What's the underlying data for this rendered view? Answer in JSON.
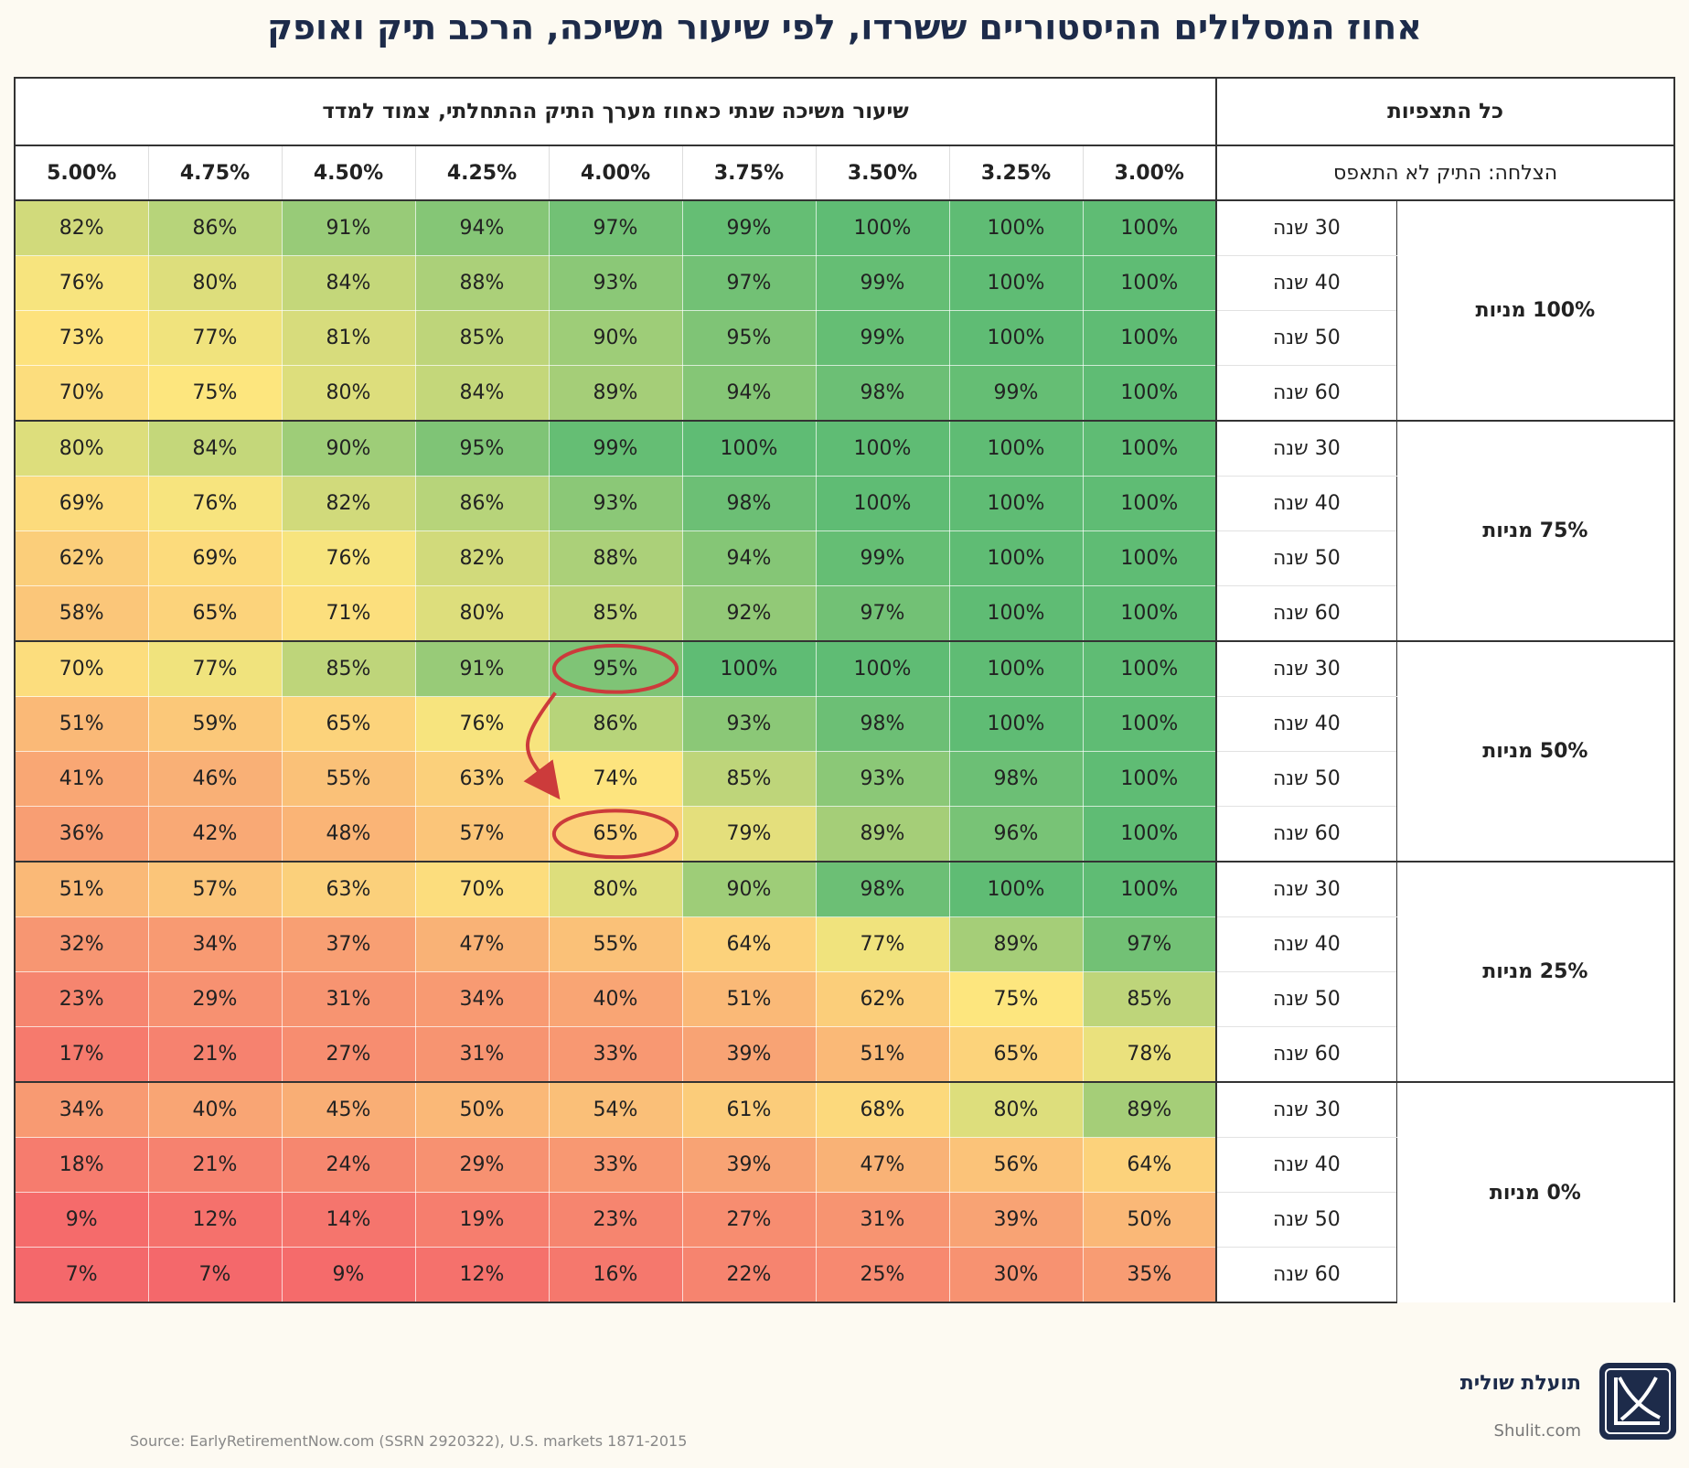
{
  "title": "אחוז המסלולים ההיסטוריים ששרדו, לפי שיעור משיכה, הרכב תיק ואופק",
  "header": {
    "all_expectations": "כל התצפיות",
    "withdrawal_caption": "שיעור משיכה שנתי כאחוז מערך התיק ההתחלתי, צמוד למדד",
    "success_label": "הצלחה: התיק לא התאפס"
  },
  "rates": [
    "5.00%",
    "4.75%",
    "4.50%",
    "4.25%",
    "4.00%",
    "3.75%",
    "3.50%",
    "3.25%",
    "3.00%"
  ],
  "chart_data": {
    "type": "heatmap",
    "title": "אחוז המסלולים ההיסטוריים ששרדו, לפי שיעור משיכה, הרכב תיק ואופק",
    "x_label": "שיעור משיכה שנתי כאחוז מערך התיק ההתחלתי, צמוד למדד",
    "x": [
      "5.00%",
      "4.75%",
      "4.50%",
      "4.25%",
      "4.00%",
      "3.75%",
      "3.50%",
      "3.25%",
      "3.00%"
    ],
    "groups": [
      {
        "name": "100% מניות",
        "rows": [
          {
            "horizon": "30 שנה",
            "values": [
              82,
              86,
              91,
              94,
              97,
              99,
              100,
              100,
              100
            ]
          },
          {
            "horizon": "40 שנה",
            "values": [
              76,
              80,
              84,
              88,
              93,
              97,
              99,
              100,
              100
            ]
          },
          {
            "horizon": "50 שנה",
            "values": [
              73,
              77,
              81,
              85,
              90,
              95,
              99,
              100,
              100
            ]
          },
          {
            "horizon": "60 שנה",
            "values": [
              70,
              75,
              80,
              84,
              89,
              94,
              98,
              99,
              100
            ]
          }
        ]
      },
      {
        "name": "75% מניות",
        "rows": [
          {
            "horizon": "30 שנה",
            "values": [
              80,
              84,
              90,
              95,
              99,
              100,
              100,
              100,
              100
            ]
          },
          {
            "horizon": "40 שנה",
            "values": [
              69,
              76,
              82,
              86,
              93,
              98,
              100,
              100,
              100
            ]
          },
          {
            "horizon": "50 שנה",
            "values": [
              62,
              69,
              76,
              82,
              88,
              94,
              99,
              100,
              100
            ]
          },
          {
            "horizon": "60 שנה",
            "values": [
              58,
              65,
              71,
              80,
              85,
              92,
              97,
              100,
              100
            ]
          }
        ]
      },
      {
        "name": "50% מניות",
        "rows": [
          {
            "horizon": "30 שנה",
            "values": [
              70,
              77,
              85,
              91,
              95,
              100,
              100,
              100,
              100
            ]
          },
          {
            "horizon": "40 שנה",
            "values": [
              51,
              59,
              65,
              76,
              86,
              93,
              98,
              100,
              100
            ]
          },
          {
            "horizon": "50 שנה",
            "values": [
              41,
              46,
              55,
              63,
              74,
              85,
              93,
              98,
              100
            ]
          },
          {
            "horizon": "60 שנה",
            "values": [
              36,
              42,
              48,
              57,
              65,
              79,
              89,
              96,
              100
            ]
          }
        ]
      },
      {
        "name": "25% מניות",
        "rows": [
          {
            "horizon": "30 שנה",
            "values": [
              51,
              57,
              63,
              70,
              80,
              90,
              98,
              100,
              100
            ]
          },
          {
            "horizon": "40 שנה",
            "values": [
              32,
              34,
              37,
              47,
              55,
              64,
              77,
              89,
              97
            ]
          },
          {
            "horizon": "50 שנה",
            "values": [
              23,
              29,
              31,
              34,
              40,
              51,
              62,
              75,
              85
            ]
          },
          {
            "horizon": "60 שנה",
            "values": [
              17,
              21,
              27,
              31,
              33,
              39,
              51,
              65,
              78
            ]
          }
        ]
      },
      {
        "name": "0% מניות",
        "rows": [
          {
            "horizon": "30 שנה",
            "values": [
              34,
              40,
              45,
              50,
              54,
              61,
              68,
              80,
              89
            ]
          },
          {
            "horizon": "40 שנה",
            "values": [
              18,
              21,
              24,
              29,
              33,
              39,
              47,
              56,
              64
            ]
          },
          {
            "horizon": "50 שנה",
            "values": [
              9,
              12,
              14,
              19,
              23,
              27,
              31,
              39,
              50
            ]
          },
          {
            "horizon": "60 שנה",
            "values": [
              7,
              7,
              9,
              12,
              16,
              22,
              25,
              30,
              35
            ]
          }
        ]
      }
    ],
    "annotations": [
      {
        "type": "circle",
        "group": 2,
        "row": 0,
        "col": 4
      },
      {
        "type": "circle",
        "group": 2,
        "row": 3,
        "col": 4
      },
      {
        "type": "arrow",
        "from": {
          "group": 2,
          "row": 0,
          "col": 4
        },
        "to": {
          "group": 2,
          "row": 3,
          "col": 4
        }
      }
    ],
    "colors": {
      "low": "#f4646a",
      "mid": "#fde67e",
      "high": "#5fbc74",
      "annotation": "#cc3b3b"
    }
  },
  "footer": {
    "brand_name": "תועלת שולית",
    "brand_url": "Shulit.com",
    "source": "Source: EarlyRetirementNow.com (SSRN 2920322), U.S. markets 1871-2015"
  }
}
